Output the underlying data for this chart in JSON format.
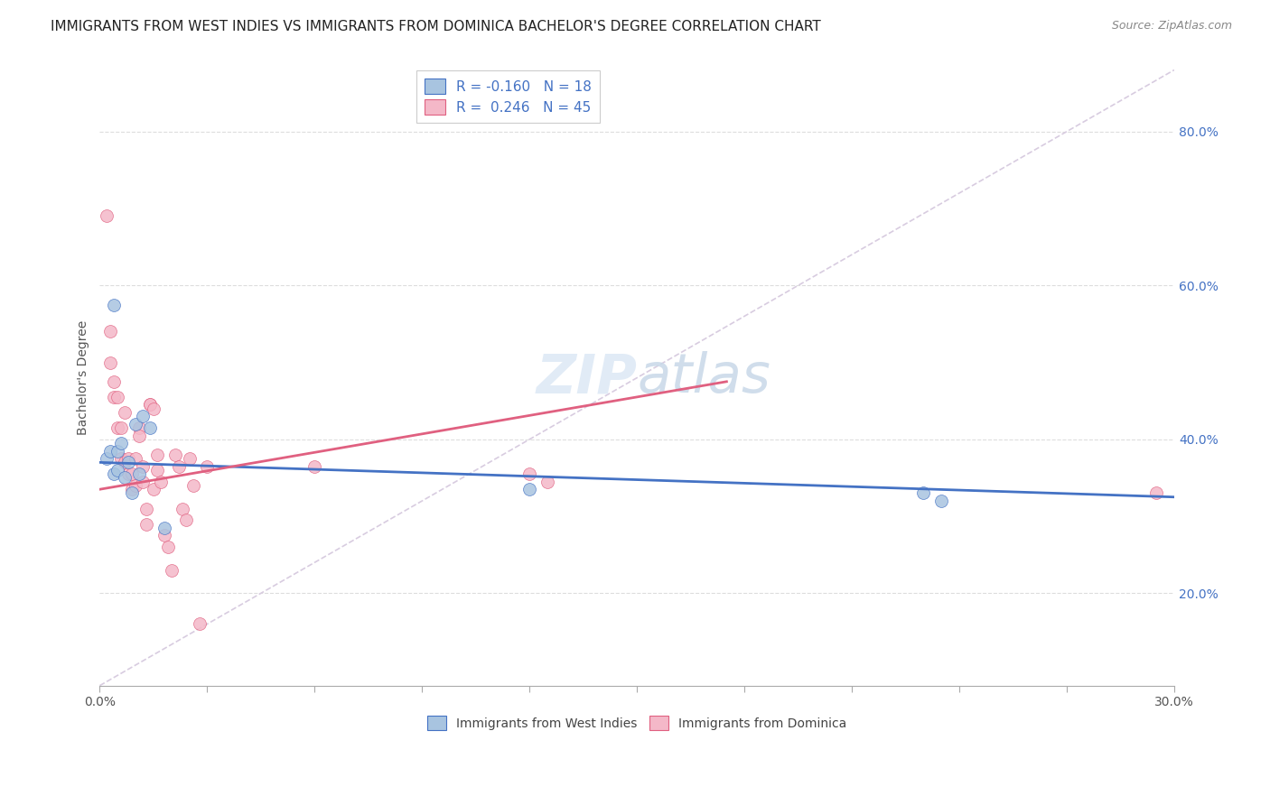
{
  "title": "IMMIGRANTS FROM WEST INDIES VS IMMIGRANTS FROM DOMINICA BACHELOR'S DEGREE CORRELATION CHART",
  "source": "Source: ZipAtlas.com",
  "ylabel": "Bachelor's Degree",
  "legend_label1": "Immigrants from West Indies",
  "legend_label2": "Immigrants from Dominica",
  "R1": -0.16,
  "N1": 18,
  "R2": 0.246,
  "N2": 45,
  "xlim": [
    0.0,
    0.3
  ],
  "ylim": [
    0.08,
    0.88
  ],
  "xtick_left_label": "0.0%",
  "xtick_right_label": "30.0%",
  "yticks": [
    0.2,
    0.4,
    0.6,
    0.8
  ],
  "ytick_labels": [
    "20.0%",
    "40.0%",
    "60.0%",
    "80.0%"
  ],
  "color_blue": "#a8c4e0",
  "color_pink": "#f4b8c8",
  "line_blue": "#4472c4",
  "line_pink": "#e06080",
  "line_diag": "#d8cce0",
  "blue_x": [
    0.002,
    0.003,
    0.004,
    0.004,
    0.005,
    0.005,
    0.006,
    0.007,
    0.008,
    0.009,
    0.01,
    0.011,
    0.012,
    0.014,
    0.018,
    0.12,
    0.23,
    0.235
  ],
  "blue_y": [
    0.375,
    0.385,
    0.355,
    0.575,
    0.36,
    0.385,
    0.395,
    0.35,
    0.37,
    0.33,
    0.42,
    0.355,
    0.43,
    0.415,
    0.285,
    0.335,
    0.33,
    0.32
  ],
  "pink_x": [
    0.002,
    0.003,
    0.003,
    0.004,
    0.004,
    0.005,
    0.005,
    0.006,
    0.006,
    0.007,
    0.007,
    0.008,
    0.008,
    0.009,
    0.009,
    0.01,
    0.01,
    0.011,
    0.011,
    0.012,
    0.012,
    0.013,
    0.013,
    0.014,
    0.014,
    0.015,
    0.015,
    0.016,
    0.016,
    0.017,
    0.018,
    0.019,
    0.02,
    0.021,
    0.022,
    0.023,
    0.024,
    0.025,
    0.026,
    0.028,
    0.03,
    0.06,
    0.12,
    0.125,
    0.295
  ],
  "pink_y": [
    0.69,
    0.54,
    0.5,
    0.475,
    0.455,
    0.455,
    0.415,
    0.415,
    0.375,
    0.435,
    0.37,
    0.375,
    0.355,
    0.355,
    0.335,
    0.375,
    0.34,
    0.415,
    0.405,
    0.365,
    0.345,
    0.31,
    0.29,
    0.445,
    0.445,
    0.44,
    0.335,
    0.38,
    0.36,
    0.345,
    0.275,
    0.26,
    0.23,
    0.38,
    0.365,
    0.31,
    0.295,
    0.375,
    0.34,
    0.16,
    0.365,
    0.365,
    0.355,
    0.345,
    0.33
  ],
  "marker_size": 100,
  "title_fontsize": 11,
  "axis_fontsize": 10,
  "tick_fontsize": 10,
  "source_fontsize": 9,
  "legend_fontsize": 11
}
